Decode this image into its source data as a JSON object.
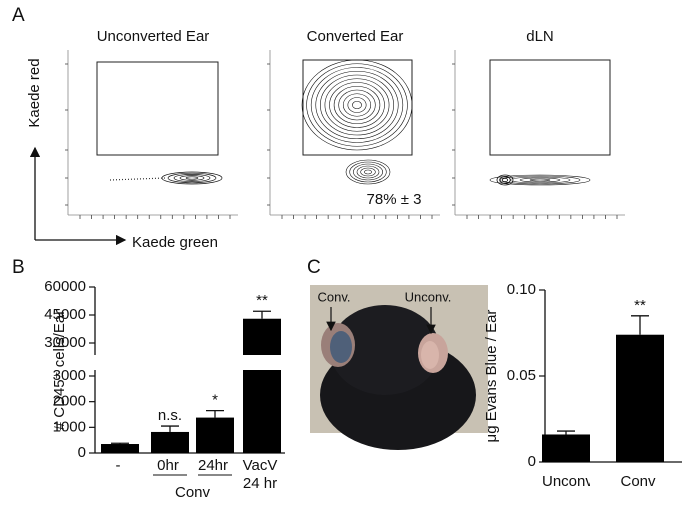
{
  "panel_labels": [
    "A",
    "B",
    "C"
  ],
  "panel_a": {
    "plots": [
      "Unconverted Ear",
      "Converted Ear",
      "dLN"
    ],
    "annotation": "78% ± 3",
    "y_label": "Kaede red",
    "x_label": "Kaede green"
  },
  "panel_c_photo": {
    "labels": [
      "Conv.",
      "Unconv."
    ]
  },
  "chart_data": [
    {
      "type": "bar",
      "y_label": "# CD45⁺ cells/Ear",
      "categories": [
        "-",
        "0hr",
        "24hr",
        "VacV 24 hr"
      ],
      "values": [
        350,
        820,
        1380,
        43000
      ],
      "errors": [
        30,
        230,
        270,
        4000
      ],
      "significance": [
        null,
        "n.s.",
        "*",
        "**"
      ],
      "groups": [
        {
          "label": "Conv",
          "members": [
            1,
            2
          ]
        }
      ],
      "ylim": [
        0,
        60000
      ],
      "ybreak": [
        3000,
        30000
      ],
      "yticks": [
        0,
        1000,
        2000,
        3000,
        30000,
        45000,
        60000
      ],
      "color": "#000000"
    },
    {
      "type": "bar",
      "y_label": "μg Evans Blue / Ear",
      "categories": [
        "Unconv",
        "Conv"
      ],
      "values": [
        0.016,
        0.074
      ],
      "errors": [
        0.002,
        0.011
      ],
      "significance": [
        null,
        "**"
      ],
      "ylim": [
        0,
        0.1
      ],
      "yticks": [
        0,
        0.05,
        {
          "value": 0.1,
          "label": "0.10"
        }
      ],
      "color": "#000000"
    }
  ]
}
